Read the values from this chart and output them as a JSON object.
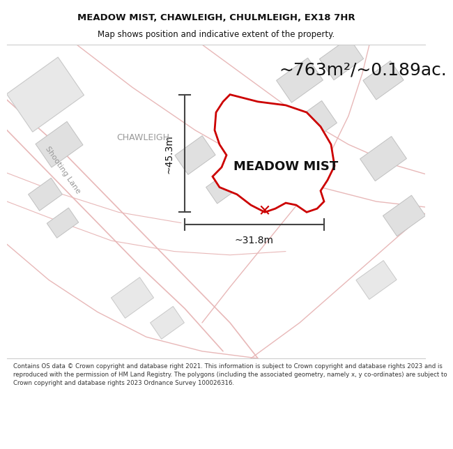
{
  "title_line1": "MEADOW MIST, CHAWLEIGH, CHULMLEIGH, EX18 7HR",
  "title_line2": "Map shows position and indicative extent of the property.",
  "area_label": "~763m²/~0.189ac.",
  "property_name": "MEADOW MIST",
  "dim_vertical": "~45.3m",
  "dim_horizontal": "~31.8m",
  "road_label": "Shooting Lane",
  "area_label2": "CHAWLEIGH",
  "footer_text": "Contains OS data © Crown copyright and database right 2021. This information is subject to Crown copyright and database rights 2023 and is reproduced with the permission of HM Land Registry. The polygons (including the associated geometry, namely x, y co-ordinates) are subject to Crown copyright and database rights 2023 Ordnance Survey 100026316.",
  "map_bg": "#ffffff",
  "property_fill": "#ffffff",
  "property_outline": "#cc0000",
  "road_color": "#e8b8b8",
  "building_fill": "#e8e8e8",
  "building_outline": "#c0c0c0",
  "dim_line_color": "#444444",
  "text_dark": "#111111",
  "text_gray": "#999999",
  "footer_bg": "#ffffff",
  "header_bg": "#ffffff"
}
